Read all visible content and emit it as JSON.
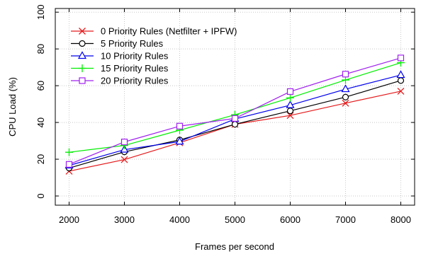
{
  "chart_data": {
    "type": "line",
    "title": "",
    "xlabel": "Frames per second",
    "ylabel": "CPU Load (%)",
    "x": [
      2000,
      3000,
      4000,
      5000,
      6000,
      7000,
      8000
    ],
    "xlim": [
      1750,
      8250
    ],
    "ylim": [
      -5,
      102
    ],
    "xticks": [
      "2000",
      "3000",
      "4000",
      "5000",
      "6000",
      "7000",
      "8000"
    ],
    "yticks": [
      "0",
      "20",
      "40",
      "60",
      "80",
      "100"
    ],
    "grid": true,
    "legend_position": "top-left",
    "series": [
      {
        "name": "0 Priority Rules (Netfilter + IPFW)",
        "color": "#e41a1c",
        "marker": "x",
        "values": [
          13.5,
          19.8,
          29.0,
          39.0,
          43.8,
          50.5,
          57.0
        ]
      },
      {
        "name": "5 Priority Rules",
        "color": "#000000",
        "marker": "circle",
        "values": [
          15.2,
          24.0,
          30.5,
          39.0,
          46.3,
          53.8,
          62.8
        ]
      },
      {
        "name": "10 Priority Rules",
        "color": "#0000ee",
        "marker": "triangle",
        "values": [
          16.6,
          25.2,
          29.6,
          41.9,
          49.4,
          58.1,
          65.8
        ]
      },
      {
        "name": "15 Priority Rules",
        "color": "#00ee00",
        "marker": "plus",
        "values": [
          23.8,
          27.5,
          35.8,
          44.2,
          53.4,
          63.1,
          72.5
        ]
      },
      {
        "name": "20 Priority Rules",
        "color": "#a020f0",
        "marker": "square",
        "values": [
          17.2,
          29.4,
          38.0,
          42.2,
          56.8,
          66.3,
          75.1
        ]
      }
    ]
  }
}
